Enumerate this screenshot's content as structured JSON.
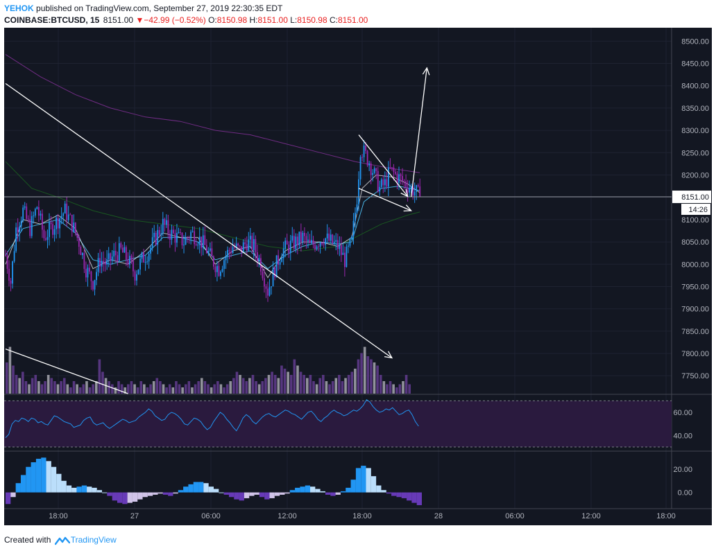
{
  "header": {
    "author": "YEHOK",
    "published_text": "published on TradingView.com, September 27, 2019 22:30:35 EDT",
    "symbol": "COINBASE:BTCUSD, 15",
    "last": "8151.00",
    "change": "−42.99 (−0.52%)",
    "o_label": "O:",
    "o_value": "8150.98",
    "h_label": "H:",
    "h_value": "8151.00",
    "l_label": "L:",
    "l_value": "8150.98",
    "c_label": "C:",
    "c_value": "8151.00"
  },
  "footer": {
    "created_with": "Created with",
    "brand": "TradingView"
  },
  "colors": {
    "background": "#131722",
    "axis_text": "#b2b5be",
    "candle": "#2196f3",
    "candle_alt": "#9c27b0",
    "ma_long": "#7b2f8f",
    "ma_mid": "#1b5e20",
    "ma_short": "#4fc3f7",
    "ma_fast": "#f0f0f0",
    "rsi_line": "#2196f3",
    "rsi_band": "#2a1a3e",
    "hist_pos_strong": "#2196f3",
    "hist_pos_weak": "#bbdefb",
    "hist_neg_strong": "#673ab7",
    "hist_neg_weak": "#d1c4e9",
    "vol_up": "#a0a0a8",
    "vol_down": "#5e3a8a",
    "drawings": "#ffffff"
  },
  "price_label": "8151.00",
  "countdown": "14:26",
  "chart_data": [
    {
      "type": "candlestick",
      "title": "COINBASE:BTCUSD, 15",
      "y_ticks": [
        7750,
        7800,
        7850,
        7900,
        7950,
        8000,
        8050,
        8100,
        8150,
        8200,
        8250,
        8300,
        8350,
        8400,
        8450,
        8500
      ],
      "y_tick_labels": [
        "7750.00",
        "7800.00",
        "7850.00",
        "7900.00",
        "7950.00",
        "8000.00",
        "8050.00",
        "8100.00",
        "8150.00",
        "8200.00",
        "8250.00",
        "8300.00",
        "8350.00",
        "8400.00",
        "8450.00",
        "8500.00"
      ],
      "x_tick_labels": [
        "18:00",
        "27",
        "06:00",
        "12:00",
        "18:00",
        "28",
        "06:00",
        "12:00",
        "18:00"
      ],
      "ylim": [
        7710,
        8530
      ],
      "last_price": 8151.0,
      "close_path": [
        [
          0,
          8020
        ],
        [
          3,
          7960
        ],
        [
          6,
          8080
        ],
        [
          10,
          8120
        ],
        [
          14,
          8080
        ],
        [
          18,
          8130
        ],
        [
          22,
          8060
        ],
        [
          26,
          8080
        ],
        [
          30,
          8100
        ],
        [
          34,
          8120
        ],
        [
          38,
          8090
        ],
        [
          42,
          8050
        ],
        [
          46,
          7990
        ],
        [
          50,
          7960
        ],
        [
          54,
          8010
        ],
        [
          58,
          8000
        ],
        [
          62,
          8020
        ],
        [
          66,
          8030
        ],
        [
          70,
          8010
        ],
        [
          74,
          7980
        ],
        [
          78,
          8010
        ],
        [
          82,
          8030
        ],
        [
          86,
          8060
        ],
        [
          90,
          8090
        ],
        [
          94,
          8070
        ],
        [
          98,
          8060
        ],
        [
          102,
          8050
        ],
        [
          106,
          8070
        ],
        [
          110,
          8060
        ],
        [
          114,
          8040
        ],
        [
          118,
          8010
        ],
        [
          122,
          7990
        ],
        [
          126,
          8020
        ],
        [
          130,
          8040
        ],
        [
          134,
          8030
        ],
        [
          138,
          8050
        ],
        [
          142,
          8040
        ],
        [
          146,
          8000
        ],
        [
          150,
          7940
        ],
        [
          154,
          7990
        ],
        [
          158,
          8030
        ],
        [
          162,
          8040
        ],
        [
          166,
          8050
        ],
        [
          170,
          8060
        ],
        [
          174,
          8040
        ],
        [
          178,
          8050
        ],
        [
          182,
          8060
        ],
        [
          186,
          8050
        ],
        [
          190,
          8040
        ],
        [
          194,
          8010
        ],
        [
          198,
          8050
        ],
        [
          201,
          8150
        ],
        [
          203,
          8260
        ],
        [
          205,
          8250
        ],
        [
          208,
          8230
        ],
        [
          211,
          8200
        ],
        [
          214,
          8170
        ],
        [
          217,
          8180
        ],
        [
          220,
          8210
        ],
        [
          223,
          8200
        ],
        [
          226,
          8190
        ],
        [
          229,
          8180
        ],
        [
          232,
          8170
        ],
        [
          235,
          8160
        ],
        [
          237,
          8151
        ]
      ],
      "ma_series": [
        {
          "role": "long",
          "path": [
            [
              0,
              8470
            ],
            [
              20,
              8420
            ],
            [
              40,
              8380
            ],
            [
              60,
              8350
            ],
            [
              80,
              8330
            ],
            [
              100,
              8320
            ],
            [
              120,
              8300
            ],
            [
              140,
              8290
            ],
            [
              160,
              8270
            ],
            [
              180,
              8250
            ],
            [
              200,
              8230
            ],
            [
              220,
              8215
            ],
            [
              237,
              8205
            ]
          ]
        },
        {
          "role": "mid",
          "path": [
            [
              0,
              8230
            ],
            [
              15,
              8170
            ],
            [
              30,
              8150
            ],
            [
              50,
              8120
            ],
            [
              70,
              8100
            ],
            [
              90,
              8090
            ],
            [
              110,
              8080
            ],
            [
              130,
              8060
            ],
            [
              150,
              8040
            ],
            [
              170,
              8030
            ],
            [
              190,
              8040
            ],
            [
              200,
              8060
            ],
            [
              215,
              8090
            ],
            [
              230,
              8110
            ],
            [
              237,
              8117
            ]
          ]
        },
        {
          "role": "short",
          "path": [
            [
              0,
              8020
            ],
            [
              10,
              8080
            ],
            [
              20,
              8090
            ],
            [
              30,
              8100
            ],
            [
              40,
              8070
            ],
            [
              50,
              8010
            ],
            [
              60,
              8000
            ],
            [
              70,
              8010
            ],
            [
              80,
              8020
            ],
            [
              90,
              8060
            ],
            [
              100,
              8060
            ],
            [
              110,
              8050
            ],
            [
              120,
              8010
            ],
            [
              130,
              8020
            ],
            [
              140,
              8030
            ],
            [
              150,
              7990
            ],
            [
              160,
              8020
            ],
            [
              170,
              8040
            ],
            [
              180,
              8050
            ],
            [
              190,
              8045
            ],
            [
              198,
              8050
            ],
            [
              205,
              8140
            ],
            [
              215,
              8170
            ],
            [
              225,
              8175
            ],
            [
              237,
              8165
            ]
          ]
        },
        {
          "role": "fast",
          "path": [
            [
              0,
              8000
            ],
            [
              10,
              8100
            ],
            [
              20,
              8090
            ],
            [
              30,
              8110
            ],
            [
              40,
              8080
            ],
            [
              50,
              7990
            ],
            [
              60,
              8010
            ],
            [
              70,
              8000
            ],
            [
              80,
              8030
            ],
            [
              90,
              8070
            ],
            [
              100,
              8060
            ],
            [
              110,
              8060
            ],
            [
              120,
              8000
            ],
            [
              130,
              8030
            ],
            [
              140,
              8040
            ],
            [
              150,
              7970
            ],
            [
              160,
              8030
            ],
            [
              170,
              8050
            ],
            [
              180,
              8050
            ],
            [
              190,
              8040
            ],
            [
              198,
              8060
            ],
            [
              204,
              8170
            ],
            [
              212,
              8200
            ],
            [
              222,
              8195
            ],
            [
              230,
              8180
            ],
            [
              237,
              8160
            ]
          ]
        }
      ],
      "volume": {
        "visible_max": 1.0,
        "bars": [
          0.5,
          0.75,
          0.45,
          0.3,
          0.25,
          0.35,
          0.2,
          0.15,
          0.25,
          0.3,
          0.2,
          0.15,
          0.2,
          0.3,
          0.25,
          0.2,
          0.15,
          0.2,
          0.25,
          0.15,
          0.1,
          0.2,
          0.15,
          0.1,
          0.15,
          0.2,
          0.1,
          0.15,
          0.2,
          0.55,
          0.35,
          0.25,
          0.2,
          0.15,
          0.1,
          0.2,
          0.15,
          0.1,
          0.15,
          0.2,
          0.15,
          0.1,
          0.2,
          0.15,
          0.1,
          0.15,
          0.2,
          0.25,
          0.2,
          0.15,
          0.1,
          0.15,
          0.1,
          0.2,
          0.15,
          0.1,
          0.15,
          0.2,
          0.1,
          0.15,
          0.2,
          0.25,
          0.2,
          0.15,
          0.1,
          0.15,
          0.2,
          0.15,
          0.1,
          0.15,
          0.2,
          0.25,
          0.35,
          0.3,
          0.25,
          0.2,
          0.25,
          0.3,
          0.2,
          0.15,
          0.2,
          0.25,
          0.3,
          0.35,
          0.3,
          0.25,
          0.45,
          0.4,
          0.35,
          0.3,
          0.55,
          0.45,
          0.35,
          0.3,
          0.25,
          0.3,
          0.2,
          0.15,
          0.25,
          0.3,
          0.2,
          0.15,
          0.2,
          0.25,
          0.3,
          0.2,
          0.25,
          0.3,
          0.35,
          0.4,
          0.55,
          0.65,
          0.75,
          0.6,
          0.55,
          0.5,
          0.45,
          0.3,
          0.2,
          0.15,
          0.2,
          0.15,
          0.1,
          0.15,
          0.2,
          0.3,
          0.15
        ]
      },
      "drawings": [
        {
          "kind": "trend_arrow",
          "from": [
            0,
            8405
          ],
          "to": [
            221,
            7790
          ]
        },
        {
          "kind": "trend_line",
          "from": [
            0,
            7810
          ],
          "to": [
            70,
            7710
          ]
        },
        {
          "kind": "wedge_upper",
          "from": [
            202,
            8290
          ],
          "to": [
            230,
            8152
          ]
        },
        {
          "kind": "wedge_lower",
          "from": [
            202,
            8170
          ],
          "to": [
            232,
            8120
          ]
        },
        {
          "kind": "breakout_arrow",
          "from": [
            232,
            8151
          ],
          "to": [
            241,
            8440
          ]
        }
      ]
    },
    {
      "type": "line",
      "title": "",
      "y_tick_labels": [
        "40.00",
        "60.00"
      ],
      "y_ticks": [
        40,
        60
      ],
      "band": [
        30,
        70
      ],
      "ylim": [
        27,
        75
      ],
      "values": [
        38,
        41,
        50,
        53,
        52,
        55,
        54,
        52,
        55,
        54,
        51,
        52,
        50,
        49,
        53,
        57,
        56,
        54,
        52,
        51,
        50,
        47,
        48,
        49,
        53,
        55,
        56,
        51,
        49,
        50,
        51,
        48,
        46,
        48,
        50,
        52,
        54,
        53,
        51,
        52,
        53,
        56,
        58,
        60,
        63,
        61,
        57,
        55,
        53,
        54,
        58,
        60,
        59,
        57,
        54,
        50,
        49,
        52,
        55,
        54,
        52,
        48,
        45,
        47,
        52,
        56,
        60,
        58,
        54,
        51,
        47,
        44,
        49,
        55,
        58,
        56,
        52,
        50,
        53,
        56,
        58,
        59,
        57,
        56,
        58,
        60,
        62,
        61,
        59,
        58,
        56,
        54,
        57,
        60,
        61,
        58,
        54,
        52,
        55,
        57,
        60,
        62,
        60,
        59,
        57,
        58,
        60,
        62,
        61,
        63,
        66,
        71,
        69,
        65,
        62,
        60,
        61,
        63,
        62,
        64,
        61,
        58,
        59,
        61,
        62,
        58,
        52,
        48
      ]
    },
    {
      "type": "bar",
      "title": "",
      "y_tick_labels": [
        "0.00",
        "20.00"
      ],
      "y_ticks": [
        0,
        20
      ],
      "ylim": [
        -14,
        35
      ],
      "values": [
        -10,
        -4,
        8,
        15,
        22,
        26,
        29,
        30,
        27,
        22,
        16,
        10,
        6,
        4,
        5,
        6,
        5,
        4,
        2,
        0,
        -3,
        -7,
        -9,
        -10,
        -9,
        -8,
        -6,
        -4,
        -3,
        -2,
        -1,
        -2,
        -3,
        -1,
        2,
        5,
        7,
        9,
        9,
        8,
        5,
        3,
        0,
        -2,
        -4,
        -6,
        -7,
        -5,
        -3,
        -2,
        -4,
        -6,
        -5,
        -3,
        -2,
        -1,
        2,
        4,
        5,
        6,
        5,
        3,
        1,
        -2,
        -3,
        -2,
        1,
        4,
        11,
        21,
        23,
        21,
        14,
        6,
        2,
        -1,
        -3,
        -4,
        -5,
        -7,
        -9,
        -11
      ],
      "x_tick_labels": [
        "18:00",
        "27",
        "06:00",
        "12:00",
        "18:00",
        "28",
        "06:00",
        "12:00",
        "18:00"
      ]
    }
  ]
}
